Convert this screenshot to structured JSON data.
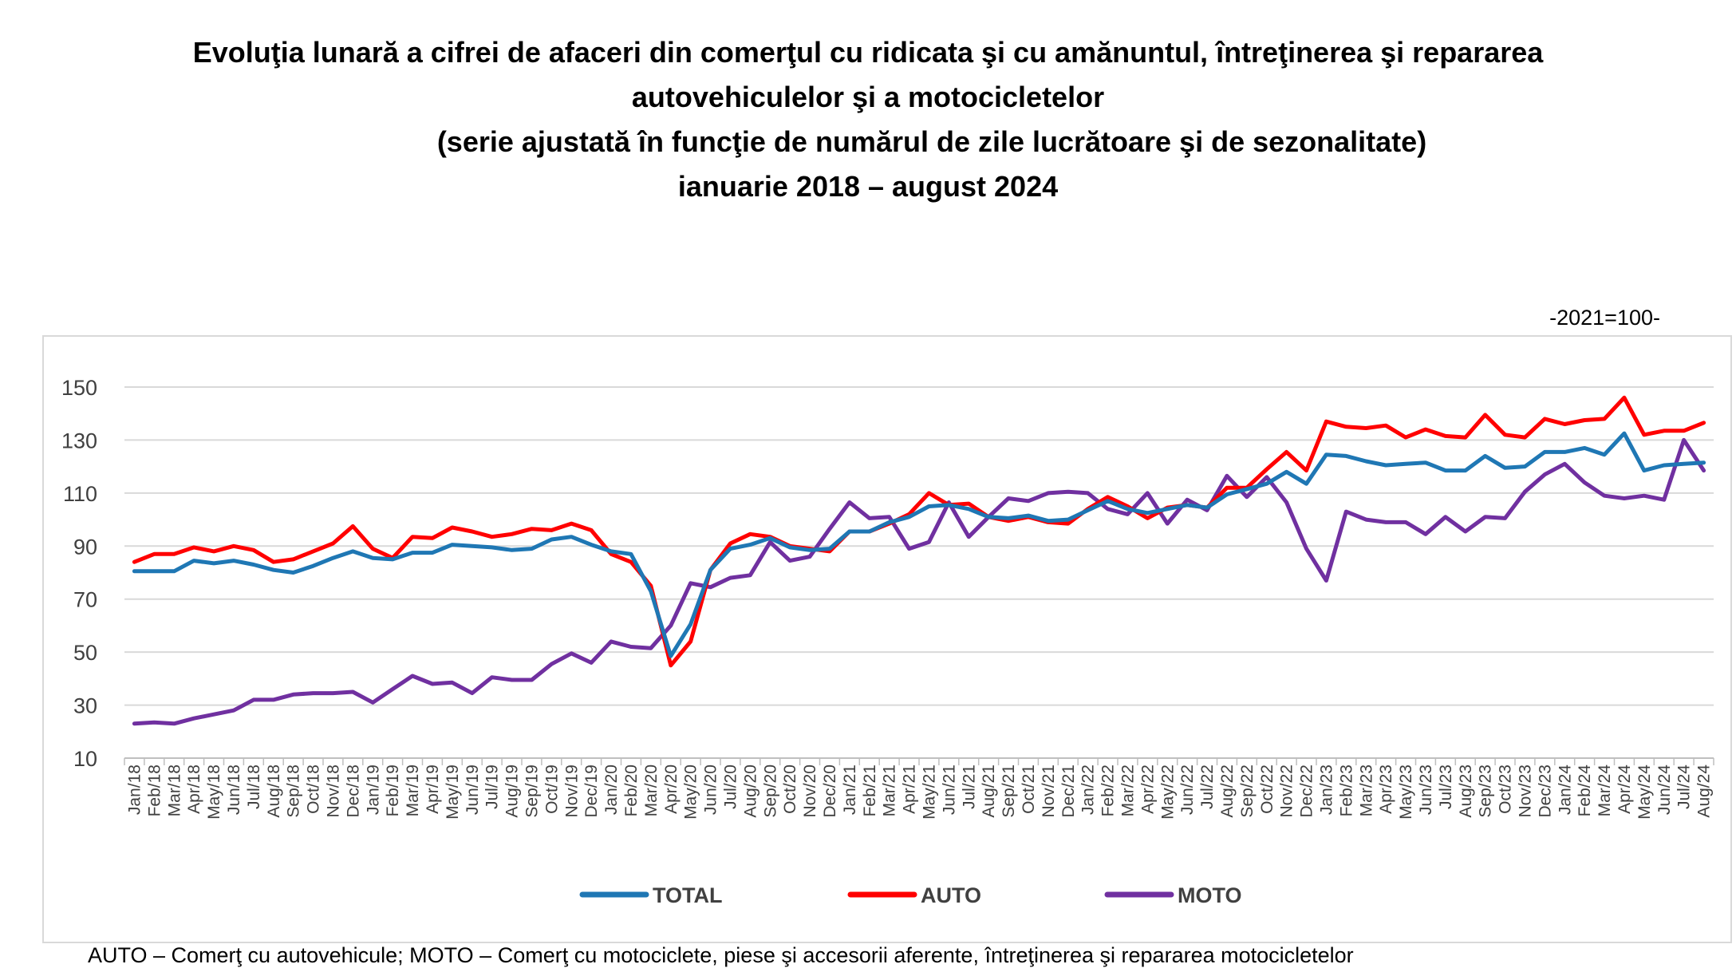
{
  "title": {
    "line1": "Evoluţia lunară a cifrei de afaceri din comerţul cu ridicata şi cu amănuntul, întreţinerea şi repararea",
    "line2": "autovehiculelor şi a motocicletelor",
    "line3": "(serie ajustată în funcţie de numărul de zile lucrătoare şi de sezonalitate)",
    "line4": "ianuarie 2018 – august 2024"
  },
  "unit_note": "-2021=100-",
  "footer_note": "AUTO – Comerţ cu autovehicule; MOTO – Comerţ cu motociclete, piese şi accesorii aferente, întreţinerea şi repararea motocicletelor",
  "colors": {
    "TOTAL": "#1f77b4",
    "AUTO": "#ff0000",
    "MOTO": "#7030a0"
  },
  "chart_data": {
    "type": "line",
    "title": "",
    "xlabel": "",
    "ylabel": "",
    "ylim": [
      10,
      150
    ],
    "yticks": [
      10,
      30,
      50,
      70,
      90,
      110,
      130,
      150
    ],
    "grid": "horizontal",
    "legend_position": "bottom",
    "categories": [
      "Jan/18",
      "Feb/18",
      "Mar/18",
      "Apr/18",
      "May/18",
      "Jun/18",
      "Jul/18",
      "Aug/18",
      "Sep/18",
      "Oct/18",
      "Nov/18",
      "Dec/18",
      "Jan/19",
      "Feb/19",
      "Mar/19",
      "Apr/19",
      "May/19",
      "Jun/19",
      "Jul/19",
      "Aug/19",
      "Sep/19",
      "Oct/19",
      "Nov/19",
      "Dec/19",
      "Jan/20",
      "Feb/20",
      "Mar/20",
      "Apr/20",
      "May/20",
      "Jun/20",
      "Jul/20",
      "Aug/20",
      "Sep/20",
      "Oct/20",
      "Nov/20",
      "Dec/20",
      "Jan/21",
      "Feb/21",
      "Mar/21",
      "Apr/21",
      "May/21",
      "Jun/21",
      "Jul/21",
      "Aug/21",
      "Sep/21",
      "Oct/21",
      "Nov/21",
      "Dec/21",
      "Jan/22",
      "Feb/22",
      "Mar/22",
      "Apr/22",
      "May/22",
      "Jun/22",
      "Jul/22",
      "Aug/22",
      "Sep/22",
      "Oct/22",
      "Nov/22",
      "Dec/22",
      "Jan/23",
      "Feb/23",
      "Mar/23",
      "Apr/23",
      "May/23",
      "Jun/23",
      "Jul/23",
      "Aug/23",
      "Sep/23",
      "Oct/23",
      "Nov/23",
      "Dec/23",
      "Jan/24",
      "Feb/24",
      "Mar/24",
      "Apr/24",
      "May/24",
      "Jun/24",
      "Jul/24",
      "Aug/24"
    ],
    "series": [
      {
        "name": "TOTAL",
        "values": [
          80.5,
          80.5,
          80.5,
          84.5,
          83.5,
          84.5,
          83,
          81,
          80,
          82.5,
          85.5,
          88,
          85.5,
          85,
          87.5,
          87.5,
          90.5,
          90,
          89.5,
          88.5,
          89,
          92.5,
          93.5,
          90.5,
          88,
          87,
          73,
          48.5,
          60.5,
          81,
          89,
          90.5,
          93,
          89.5,
          88.5,
          89,
          95.5,
          95.5,
          99,
          101,
          105,
          105.5,
          104,
          101,
          100.5,
          101.5,
          99.5,
          100,
          103.5,
          107,
          104,
          102.5,
          104,
          105.5,
          104.5,
          109.5,
          111.5,
          113.5,
          118,
          113.5,
          124.5,
          124,
          122,
          120.5,
          121,
          121.5,
          118.5,
          118.5,
          124,
          119.5,
          120,
          125.5,
          125.5,
          127,
          124.5,
          132.5,
          118.5,
          120.5,
          121,
          121.5
        ]
      },
      {
        "name": "AUTO",
        "values": [
          84,
          87,
          87,
          89.5,
          88,
          90,
          88.5,
          84,
          85,
          88,
          91,
          97.5,
          89,
          85.5,
          93.5,
          93,
          97,
          95.5,
          93.5,
          94.5,
          96.5,
          96,
          98.5,
          96,
          87,
          84,
          75,
          45,
          54,
          81,
          91,
          94.5,
          93.5,
          90,
          89,
          88,
          95.5,
          95.5,
          98.5,
          102,
          110,
          105.5,
          106,
          101,
          99.5,
          101,
          99,
          98.5,
          104,
          108.5,
          105,
          100.5,
          104.5,
          105.5,
          104.5,
          112,
          112,
          119,
          125.5,
          118.5,
          137,
          135,
          134.5,
          135.5,
          131,
          134,
          131.5,
          131,
          139.5,
          132,
          131,
          138,
          136,
          137.5,
          138,
          146,
          132,
          133.5,
          133.5,
          136.5
        ]
      },
      {
        "name": "MOTO",
        "values": [
          23,
          23.5,
          23,
          25,
          26.5,
          28,
          32,
          32,
          34,
          34.5,
          34.5,
          35,
          31,
          36,
          41,
          38,
          38.5,
          34.5,
          40.5,
          39.5,
          39.5,
          45.5,
          49.5,
          46,
          54,
          52,
          51.5,
          60,
          76,
          74.5,
          78,
          79,
          91.5,
          84.5,
          86,
          96.5,
          106.5,
          100.5,
          101,
          89,
          91.5,
          106.5,
          93.5,
          101,
          108,
          107,
          110,
          110.5,
          110,
          104,
          102,
          110,
          98.5,
          107.5,
          103.5,
          116.5,
          108.5,
          116,
          106.5,
          89,
          77,
          103,
          100,
          99,
          99,
          94.5,
          101,
          95.5,
          101,
          100.5,
          110.5,
          117,
          121,
          114,
          109,
          108,
          109,
          107.5,
          130,
          118.5
        ]
      }
    ]
  }
}
